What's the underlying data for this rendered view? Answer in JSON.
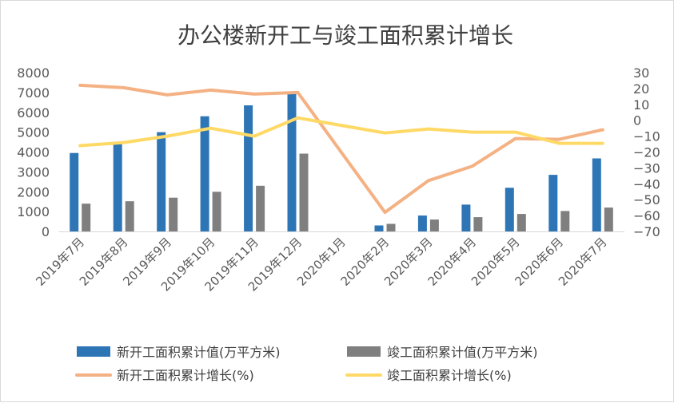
{
  "chart_data": {
    "type": "bar",
    "title": "办公楼新开工与竣工面积累计增长",
    "categories": [
      "2019年7月",
      "2019年8月",
      "2019年9月",
      "2019年10月",
      "2019年11月",
      "2019年12月",
      "2020年1月",
      "2020年2月",
      "2020年3月",
      "2020年4月",
      "2020年5月",
      "2020年6月",
      "2020年7月"
    ],
    "series": [
      {
        "name": "新开工面积累计值(万平方米)",
        "type": "bar",
        "axis": "left",
        "color": "#2e75b6",
        "values": [
          3950,
          4450,
          5000,
          5800,
          6350,
          6980,
          null,
          300,
          800,
          1350,
          2200,
          2850,
          3680
        ]
      },
      {
        "name": "竣工面积累计值(万平方米)",
        "type": "bar",
        "axis": "left",
        "color": "#7f7f7f",
        "values": [
          1400,
          1520,
          1700,
          2000,
          2300,
          3920,
          null,
          380,
          600,
          720,
          880,
          1030,
          1200
        ]
      },
      {
        "name": "新开工面积累计增长(%)",
        "type": "line",
        "axis": "right",
        "color": "#f4b183",
        "values": [
          22,
          20.5,
          16,
          19,
          16.5,
          17.5,
          null,
          -58,
          -38,
          -29,
          -11.5,
          -12,
          -6
        ]
      },
      {
        "name": "竣工面积累计增长(%)",
        "type": "line",
        "axis": "right",
        "color": "#ffd966",
        "values": [
          -16,
          -14,
          -10,
          -5,
          -10,
          1.5,
          null,
          -8,
          -5.5,
          -7.5,
          -7.5,
          -14.5,
          -14.5
        ]
      }
    ],
    "y_left": {
      "min": 0,
      "max": 8000,
      "step": 1000,
      "ticks": [
        "0",
        "1000",
        "2000",
        "3000",
        "4000",
        "5000",
        "6000",
        "7000",
        "8000"
      ]
    },
    "y_right": {
      "min": -70,
      "max": 30,
      "step": 10,
      "ticks": [
        "−70",
        "−60",
        "−50",
        "−40",
        "−30",
        "−20",
        "−10",
        "0",
        "10",
        "20",
        "30"
      ]
    },
    "line_connects_gaps": true,
    "grid": false,
    "legend_position": "bottom"
  }
}
